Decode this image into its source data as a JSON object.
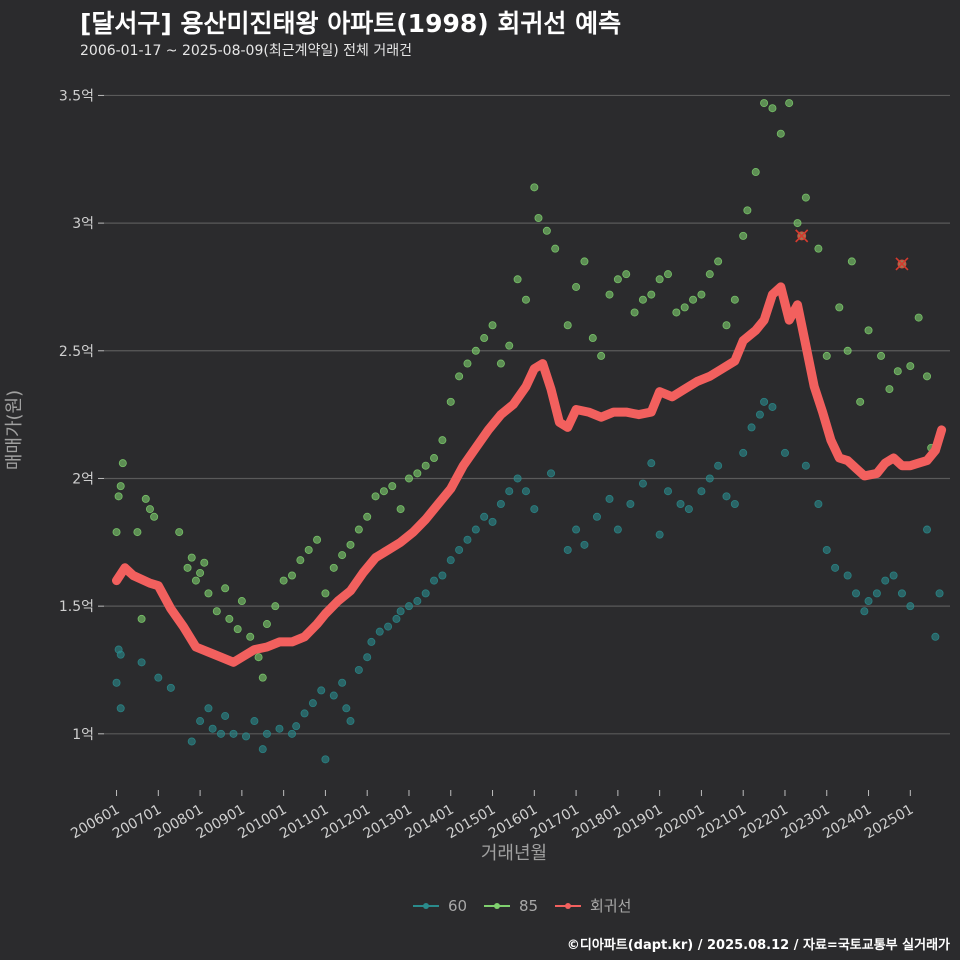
{
  "header": {
    "title": "[달서구] 용산미진태왕 아파트(1998) 회귀선 예측",
    "subtitle": "2006-01-17 ~ 2025-08-09(최근계약일) 전체 거래건"
  },
  "footer": {
    "credit": "©디아파트(dapt.kr) / 2025.08.12 / 자료=국토교통부 실거래가"
  },
  "colors": {
    "background": "#2b2b2d",
    "grid": "#5a5a5a",
    "s60": "#2a8b8c",
    "s85": "#7fd06e",
    "regression": "#f2605e",
    "text": "#cfcfcf"
  },
  "chart_data": {
    "type": "scatter",
    "title": "[달서구] 용산미진태왕 아파트(1998) 회귀선 예측",
    "subtitle": "2006-01-17 ~ 2025-08-09(최근계약일) 전체 거래건",
    "xlabel": "거래년월",
    "ylabel": "매매가(원)",
    "xticks": [
      "200601",
      "200701",
      "200801",
      "200901",
      "201001",
      "201101",
      "201201",
      "201301",
      "201401",
      "201501",
      "201601",
      "201701",
      "201801",
      "201901",
      "202001",
      "202101",
      "202201",
      "202301",
      "202401",
      "202501"
    ],
    "yticks": [
      {
        "value": 1.0,
        "label": "1억"
      },
      {
        "value": 1.5,
        "label": "1.5억"
      },
      {
        "value": 2.0,
        "label": "2억"
      },
      {
        "value": 2.5,
        "label": "2.5억"
      },
      {
        "value": 3.0,
        "label": "3억"
      },
      {
        "value": 3.5,
        "label": "3.5억"
      }
    ],
    "ylim": [
      0.78,
      3.58
    ],
    "xlim": [
      2005.7,
      2025.95
    ],
    "grid": true,
    "legend_position": "bottom",
    "legend": [
      "60",
      "85",
      "회귀선"
    ],
    "series": [
      {
        "name": "60",
        "points": [
          [
            2006.0,
            1.2
          ],
          [
            2006.05,
            1.33
          ],
          [
            2006.1,
            1.31
          ],
          [
            2006.1,
            1.1
          ],
          [
            2006.6,
            1.28
          ],
          [
            2007.0,
            1.22
          ],
          [
            2007.3,
            1.18
          ],
          [
            2007.8,
            0.97
          ],
          [
            2008.0,
            1.05
          ],
          [
            2008.2,
            1.1
          ],
          [
            2008.3,
            1.02
          ],
          [
            2008.5,
            1.0
          ],
          [
            2008.6,
            1.07
          ],
          [
            2008.8,
            1.0
          ],
          [
            2009.1,
            0.99
          ],
          [
            2009.3,
            1.05
          ],
          [
            2009.5,
            0.94
          ],
          [
            2009.6,
            1.0
          ],
          [
            2009.9,
            1.02
          ],
          [
            2010.2,
            1.0
          ],
          [
            2010.3,
            1.03
          ],
          [
            2010.5,
            1.08
          ],
          [
            2010.7,
            1.12
          ],
          [
            2010.9,
            1.17
          ],
          [
            2011.0,
            0.9
          ],
          [
            2011.2,
            1.15
          ],
          [
            2011.4,
            1.2
          ],
          [
            2011.5,
            1.1
          ],
          [
            2011.6,
            1.05
          ],
          [
            2011.8,
            1.25
          ],
          [
            2012.0,
            1.3
          ],
          [
            2012.1,
            1.36
          ],
          [
            2012.3,
            1.4
          ],
          [
            2012.5,
            1.42
          ],
          [
            2012.7,
            1.45
          ],
          [
            2012.8,
            1.48
          ],
          [
            2013.0,
            1.5
          ],
          [
            2013.2,
            1.52
          ],
          [
            2013.4,
            1.55
          ],
          [
            2013.6,
            1.6
          ],
          [
            2013.8,
            1.62
          ],
          [
            2014.0,
            1.68
          ],
          [
            2014.2,
            1.72
          ],
          [
            2014.4,
            1.76
          ],
          [
            2014.6,
            1.8
          ],
          [
            2014.8,
            1.85
          ],
          [
            2015.0,
            1.83
          ],
          [
            2015.2,
            1.9
          ],
          [
            2015.4,
            1.95
          ],
          [
            2015.6,
            2.0
          ],
          [
            2015.8,
            1.95
          ],
          [
            2016.0,
            1.88
          ],
          [
            2016.4,
            2.02
          ],
          [
            2016.8,
            1.72
          ],
          [
            2017.0,
            1.8
          ],
          [
            2017.2,
            1.74
          ],
          [
            2017.5,
            1.85
          ],
          [
            2017.8,
            1.92
          ],
          [
            2018.0,
            1.8
          ],
          [
            2018.3,
            1.9
          ],
          [
            2018.6,
            1.98
          ],
          [
            2018.8,
            2.06
          ],
          [
            2019.0,
            1.78
          ],
          [
            2019.2,
            1.95
          ],
          [
            2019.5,
            1.9
          ],
          [
            2019.7,
            1.88
          ],
          [
            2020.0,
            1.95
          ],
          [
            2020.2,
            2.0
          ],
          [
            2020.4,
            2.05
          ],
          [
            2020.6,
            1.93
          ],
          [
            2020.8,
            1.9
          ],
          [
            2021.0,
            2.1
          ],
          [
            2021.2,
            2.2
          ],
          [
            2021.4,
            2.25
          ],
          [
            2021.5,
            2.3
          ],
          [
            2021.7,
            2.28
          ],
          [
            2022.0,
            2.1
          ],
          [
            2022.5,
            2.05
          ],
          [
            2022.8,
            1.9
          ],
          [
            2023.0,
            1.72
          ],
          [
            2023.2,
            1.65
          ],
          [
            2023.5,
            1.62
          ],
          [
            2023.7,
            1.55
          ],
          [
            2023.9,
            1.48
          ],
          [
            2024.0,
            1.52
          ],
          [
            2024.2,
            1.55
          ],
          [
            2024.4,
            1.6
          ],
          [
            2024.6,
            1.62
          ],
          [
            2024.8,
            1.55
          ],
          [
            2025.0,
            1.5
          ],
          [
            2025.4,
            1.8
          ],
          [
            2025.6,
            1.38
          ],
          [
            2025.7,
            1.55
          ]
        ]
      },
      {
        "name": "85",
        "points": [
          [
            2006.0,
            1.79
          ],
          [
            2006.05,
            1.93
          ],
          [
            2006.1,
            1.97
          ],
          [
            2006.15,
            2.06
          ],
          [
            2006.5,
            1.79
          ],
          [
            2006.6,
            1.45
          ],
          [
            2006.7,
            1.92
          ],
          [
            2006.8,
            1.88
          ],
          [
            2006.9,
            1.85
          ],
          [
            2007.5,
            1.79
          ],
          [
            2007.7,
            1.65
          ],
          [
            2007.8,
            1.69
          ],
          [
            2007.9,
            1.6
          ],
          [
            2008.0,
            1.63
          ],
          [
            2008.1,
            1.67
          ],
          [
            2008.2,
            1.55
          ],
          [
            2008.4,
            1.48
          ],
          [
            2008.6,
            1.57
          ],
          [
            2008.7,
            1.45
          ],
          [
            2008.9,
            1.41
          ],
          [
            2009.0,
            1.52
          ],
          [
            2009.2,
            1.38
          ],
          [
            2009.4,
            1.3
          ],
          [
            2009.5,
            1.22
          ],
          [
            2009.6,
            1.43
          ],
          [
            2009.8,
            1.5
          ],
          [
            2010.0,
            1.6
          ],
          [
            2010.2,
            1.62
          ],
          [
            2010.4,
            1.68
          ],
          [
            2010.6,
            1.72
          ],
          [
            2010.8,
            1.76
          ],
          [
            2011.0,
            1.55
          ],
          [
            2011.2,
            1.65
          ],
          [
            2011.4,
            1.7
          ],
          [
            2011.6,
            1.74
          ],
          [
            2011.8,
            1.8
          ],
          [
            2012.0,
            1.85
          ],
          [
            2012.2,
            1.93
          ],
          [
            2012.4,
            1.95
          ],
          [
            2012.6,
            1.97
          ],
          [
            2012.8,
            1.88
          ],
          [
            2013.0,
            2.0
          ],
          [
            2013.2,
            2.02
          ],
          [
            2013.4,
            2.05
          ],
          [
            2013.6,
            2.08
          ],
          [
            2013.8,
            2.15
          ],
          [
            2014.0,
            2.3
          ],
          [
            2014.2,
            2.4
          ],
          [
            2014.4,
            2.45
          ],
          [
            2014.6,
            2.5
          ],
          [
            2014.8,
            2.55
          ],
          [
            2015.0,
            2.6
          ],
          [
            2015.2,
            2.45
          ],
          [
            2015.4,
            2.52
          ],
          [
            2015.6,
            2.78
          ],
          [
            2015.8,
            2.7
          ],
          [
            2016.0,
            3.14
          ],
          [
            2016.1,
            3.02
          ],
          [
            2016.3,
            2.97
          ],
          [
            2016.5,
            2.9
          ],
          [
            2016.8,
            2.6
          ],
          [
            2017.0,
            2.75
          ],
          [
            2017.2,
            2.85
          ],
          [
            2017.4,
            2.55
          ],
          [
            2017.6,
            2.48
          ],
          [
            2017.8,
            2.72
          ],
          [
            2018.0,
            2.78
          ],
          [
            2018.2,
            2.8
          ],
          [
            2018.4,
            2.65
          ],
          [
            2018.6,
            2.7
          ],
          [
            2018.8,
            2.72
          ],
          [
            2019.0,
            2.78
          ],
          [
            2019.2,
            2.8
          ],
          [
            2019.4,
            2.65
          ],
          [
            2019.6,
            2.67
          ],
          [
            2019.8,
            2.7
          ],
          [
            2020.0,
            2.72
          ],
          [
            2020.2,
            2.8
          ],
          [
            2020.4,
            2.85
          ],
          [
            2020.6,
            2.6
          ],
          [
            2020.8,
            2.7
          ],
          [
            2021.0,
            2.95
          ],
          [
            2021.1,
            3.05
          ],
          [
            2021.3,
            3.2
          ],
          [
            2021.5,
            3.47
          ],
          [
            2021.7,
            3.45
          ],
          [
            2021.9,
            3.35
          ],
          [
            2022.1,
            3.47
          ],
          [
            2022.3,
            3.0
          ],
          [
            2022.5,
            3.1
          ],
          [
            2022.8,
            2.9
          ],
          [
            2023.0,
            2.48
          ],
          [
            2023.3,
            2.67
          ],
          [
            2023.5,
            2.5
          ],
          [
            2023.6,
            2.85
          ],
          [
            2023.8,
            2.3
          ],
          [
            2024.0,
            2.58
          ],
          [
            2024.3,
            2.48
          ],
          [
            2024.5,
            2.35
          ],
          [
            2024.7,
            2.42
          ],
          [
            2025.0,
            2.44
          ],
          [
            2025.2,
            2.63
          ],
          [
            2025.4,
            2.4
          ],
          [
            2025.5,
            2.12
          ]
        ]
      },
      {
        "name": "회귀선",
        "points": [
          [
            2006.0,
            1.6
          ],
          [
            2006.2,
            1.65
          ],
          [
            2006.4,
            1.62
          ],
          [
            2006.8,
            1.59
          ],
          [
            2007.0,
            1.58
          ],
          [
            2007.3,
            1.49
          ],
          [
            2007.6,
            1.42
          ],
          [
            2007.9,
            1.34
          ],
          [
            2008.2,
            1.32
          ],
          [
            2008.5,
            1.3
          ],
          [
            2008.8,
            1.28
          ],
          [
            2009.0,
            1.3
          ],
          [
            2009.3,
            1.33
          ],
          [
            2009.6,
            1.34
          ],
          [
            2009.9,
            1.36
          ],
          [
            2010.2,
            1.36
          ],
          [
            2010.5,
            1.38
          ],
          [
            2010.8,
            1.43
          ],
          [
            2011.0,
            1.47
          ],
          [
            2011.3,
            1.52
          ],
          [
            2011.6,
            1.56
          ],
          [
            2011.9,
            1.63
          ],
          [
            2012.2,
            1.69
          ],
          [
            2012.5,
            1.72
          ],
          [
            2012.8,
            1.75
          ],
          [
            2013.1,
            1.79
          ],
          [
            2013.4,
            1.84
          ],
          [
            2013.7,
            1.9
          ],
          [
            2014.0,
            1.96
          ],
          [
            2014.3,
            2.05
          ],
          [
            2014.6,
            2.12
          ],
          [
            2014.9,
            2.19
          ],
          [
            2015.2,
            2.25
          ],
          [
            2015.5,
            2.29
          ],
          [
            2015.8,
            2.36
          ],
          [
            2016.0,
            2.43
          ],
          [
            2016.2,
            2.45
          ],
          [
            2016.4,
            2.35
          ],
          [
            2016.6,
            2.22
          ],
          [
            2016.8,
            2.2
          ],
          [
            2017.0,
            2.27
          ],
          [
            2017.3,
            2.26
          ],
          [
            2017.6,
            2.24
          ],
          [
            2017.9,
            2.26
          ],
          [
            2018.2,
            2.26
          ],
          [
            2018.5,
            2.25
          ],
          [
            2018.8,
            2.26
          ],
          [
            2019.0,
            2.34
          ],
          [
            2019.3,
            2.32
          ],
          [
            2019.6,
            2.35
          ],
          [
            2019.9,
            2.38
          ],
          [
            2020.2,
            2.4
          ],
          [
            2020.5,
            2.43
          ],
          [
            2020.8,
            2.46
          ],
          [
            2021.0,
            2.54
          ],
          [
            2021.3,
            2.58
          ],
          [
            2021.5,
            2.62
          ],
          [
            2021.7,
            2.72
          ],
          [
            2021.9,
            2.75
          ],
          [
            2022.1,
            2.62
          ],
          [
            2022.3,
            2.68
          ],
          [
            2022.5,
            2.52
          ],
          [
            2022.7,
            2.36
          ],
          [
            2022.9,
            2.26
          ],
          [
            2023.1,
            2.15
          ],
          [
            2023.3,
            2.08
          ],
          [
            2023.5,
            2.07
          ],
          [
            2023.7,
            2.04
          ],
          [
            2023.9,
            2.01
          ],
          [
            2024.2,
            2.02
          ],
          [
            2024.4,
            2.06
          ],
          [
            2024.6,
            2.08
          ],
          [
            2024.8,
            2.05
          ],
          [
            2025.0,
            2.05
          ],
          [
            2025.2,
            2.06
          ],
          [
            2025.4,
            2.07
          ],
          [
            2025.6,
            2.11
          ],
          [
            2025.75,
            2.19
          ]
        ]
      }
    ],
    "highlight_points": [
      {
        "x": 2022.4,
        "y": 2.95
      },
      {
        "x": 2024.8,
        "y": 2.84
      }
    ]
  }
}
